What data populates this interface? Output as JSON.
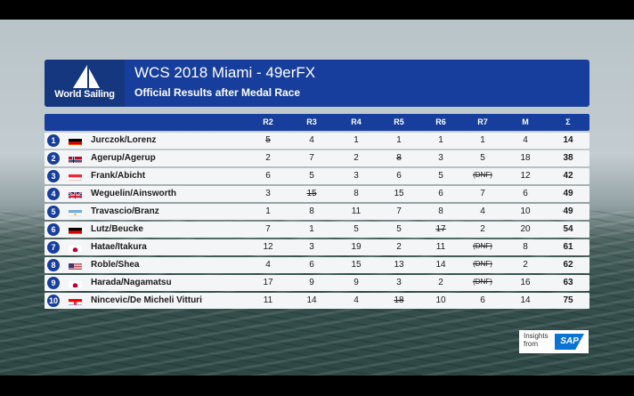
{
  "header": {
    "logo_text": "World Sailing",
    "title": "WCS 2018 Miami - 49erFX",
    "subtitle": "Official Results after Medal Race"
  },
  "columns": [
    "R2",
    "R3",
    "R4",
    "R5",
    "R6",
    "R7",
    "M",
    "Σ"
  ],
  "rows": [
    {
      "rank": "1",
      "flag": "germany-flag",
      "name": "Jurczok/Lorenz",
      "cells": [
        "5",
        "4",
        "1",
        "1",
        "1",
        "1",
        "4",
        "14"
      ],
      "discard": [
        0
      ]
    },
    {
      "rank": "2",
      "flag": "norway-flag",
      "name": "Agerup/Agerup",
      "cells": [
        "2",
        "7",
        "2",
        "8",
        "3",
        "5",
        "18",
        "38"
      ],
      "discard": [
        3
      ]
    },
    {
      "rank": "3",
      "flag": "austria-flag",
      "name": "Frank/Abicht",
      "cells": [
        "6",
        "5",
        "3",
        "6",
        "5",
        "(DNF)",
        "12",
        "42"
      ],
      "discard": [
        5
      ]
    },
    {
      "rank": "4",
      "flag": "uk-flag",
      "name": "Weguelin/Ainsworth",
      "cells": [
        "3",
        "15",
        "8",
        "15",
        "6",
        "7",
        "6",
        "49"
      ],
      "discard": [
        1
      ]
    },
    {
      "rank": "5",
      "flag": "argentina-flag",
      "name": "Travascio/Branz",
      "cells": [
        "1",
        "8",
        "11",
        "7",
        "8",
        "4",
        "10",
        "49"
      ],
      "discard": []
    },
    {
      "rank": "6",
      "flag": "germany-flag",
      "name": "Lutz/Beucke",
      "cells": [
        "7",
        "1",
        "5",
        "5",
        "17",
        "2",
        "20",
        "54"
      ],
      "discard": [
        4
      ]
    },
    {
      "rank": "7",
      "flag": "japan-flag",
      "name": "Hatae/Itakura",
      "cells": [
        "12",
        "3",
        "19",
        "2",
        "11",
        "(DNF)",
        "8",
        "61"
      ],
      "discard": [
        5
      ]
    },
    {
      "rank": "8",
      "flag": "usa-flag",
      "name": "Roble/Shea",
      "cells": [
        "4",
        "6",
        "15",
        "13",
        "14",
        "(DNF)",
        "2",
        "62"
      ],
      "discard": [
        5
      ]
    },
    {
      "rank": "9",
      "flag": "japan-flag",
      "name": "Harada/Nagamatsu",
      "cells": [
        "17",
        "9",
        "9",
        "3",
        "2",
        "(DNF)",
        "16",
        "63"
      ],
      "discard": [
        5
      ]
    },
    {
      "rank": "10",
      "flag": "croatia-flag",
      "name": "Nincevic/De Micheli Vitturi",
      "cells": [
        "11",
        "14",
        "4",
        "18",
        "10",
        "6",
        "14",
        "75"
      ],
      "discard": [
        3
      ]
    }
  ],
  "sponsor": {
    "line1": "Insights",
    "line2": "from",
    "logo": "SAP"
  },
  "colors": {
    "header_blue": "#173e9c",
    "logo_blue": "#14377f",
    "row_bg": "#f4f5f7"
  }
}
